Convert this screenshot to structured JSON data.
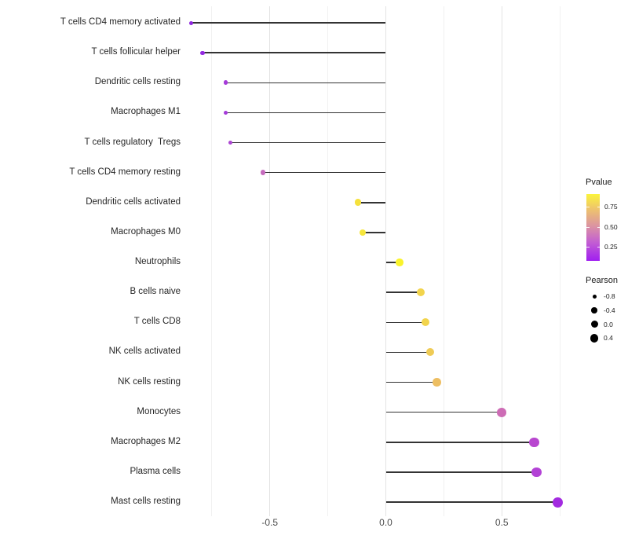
{
  "chart_data": {
    "type": "scatter",
    "variant": "horizontal-lollipop",
    "title": "",
    "xlabel": "",
    "ylabel": "",
    "grid": "on",
    "xlim": [
      -0.86,
      0.82
    ],
    "x_ticks": [
      {
        "label": "-0.5",
        "value": -0.5
      },
      {
        "label": "0.0",
        "value": 0.0
      },
      {
        "label": "0.5",
        "value": 0.5
      }
    ],
    "x_gridlines_major": [
      -0.5,
      0.0,
      0.5
    ],
    "x_gridlines_minor": [
      -0.75,
      -0.25,
      0.25,
      0.75
    ],
    "categories": [
      "T cells CD4 memory activated",
      "T cells follicular helper",
      "Dendritic cells resting",
      "Macrophages M1",
      "T cells regulatory  Tregs",
      "T cells CD4 memory resting",
      "Dendritic cells activated",
      "Macrophages M0",
      "Neutrophils",
      "B cells naive",
      "T cells CD8",
      "NK cells activated",
      "NK cells resting",
      "Monocytes",
      "Macrophages M2",
      "Plasma cells",
      "Mast cells resting"
    ],
    "series": [
      {
        "name": "Pearson",
        "values": [
          -0.84,
          -0.79,
          -0.69,
          -0.69,
          -0.67,
          -0.53,
          -0.12,
          -0.1,
          0.06,
          0.15,
          0.17,
          0.19,
          0.22,
          0.5,
          0.64,
          0.65,
          0.74
        ]
      }
    ],
    "point_colors": [
      "#8f27df",
      "#9329e0",
      "#a63bd9",
      "#a53bd9",
      "#ac46d2",
      "#c66cbe",
      "#f5e13c",
      "#f6e63c",
      "#faf32b",
      "#f2d44c",
      "#f2d44c",
      "#efcb55",
      "#edbe62",
      "#cd6cb5",
      "#b846cf",
      "#b342d6",
      "#a32be0"
    ],
    "stem_color": "#333333",
    "legend": {
      "position": "right",
      "pvalue": {
        "title": "Pvalue",
        "gradient_bottom": "#a01ef0",
        "gradient_middle": "#db93a2",
        "gradient_top": "#fbf43c",
        "ticks": [
          {
            "label": "0.75",
            "frac_from_bottom": 0.815
          },
          {
            "label": "0.50",
            "frac_from_bottom": 0.505
          },
          {
            "label": "0.25",
            "frac_from_bottom": 0.215
          }
        ]
      },
      "pearson": {
        "title": "Pearson",
        "items": [
          {
            "label": "-0.8",
            "diameter": 5
          },
          {
            "label": "-0.4",
            "diameter": 7.5
          },
          {
            "label": "0.0",
            "diameter": 9
          },
          {
            "label": "0.4",
            "diameter": 10.5
          }
        ]
      }
    }
  }
}
